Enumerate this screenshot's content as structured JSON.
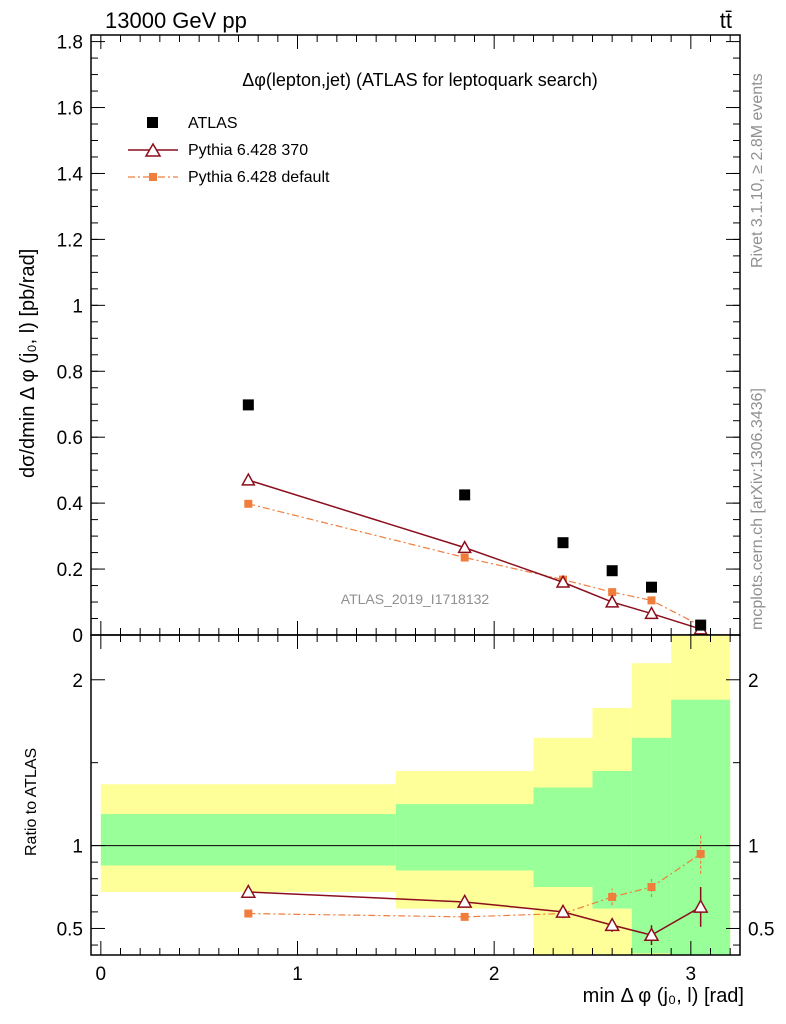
{
  "header": {
    "energy_label": "13000 GeV pp",
    "process_label": "tt̄"
  },
  "side": {
    "rivet_label": "Rivet 3.1.10, ≥ 2.8M events",
    "mcplots_label": "mcplots.cern.ch [arXiv:1306.3436]"
  },
  "colors": {
    "data": "#000000",
    "pythia370": "#8b0e1d",
    "pythia_default": "#f07d3c",
    "band_yellow": "#ffff99",
    "band_green": "#99ff99"
  },
  "chart_data": [
    {
      "type": "scatter",
      "title": "Δφ(lepton,jet) (ATLAS for leptoquark search)",
      "analysis_label": "ATLAS_2019_I1718132",
      "ylabel": "dσ/dmin Δ φ (j₀, l) [pb/rad]",
      "xlim": [
        -0.05,
        3.25
      ],
      "ylim": [
        0,
        1.82
      ],
      "yticks": [
        "0",
        "0.2",
        "0.4",
        "0.6",
        "0.8",
        "1",
        "1.2",
        "1.4",
        "1.6",
        "1.8"
      ],
      "legend_position": "top-left",
      "series": [
        {
          "name": "ATLAS",
          "x": [
            0.75,
            1.85,
            2.35,
            2.6,
            2.8,
            3.05
          ],
          "y": [
            0.698,
            0.425,
            0.28,
            0.195,
            0.145,
            0.03
          ]
        },
        {
          "name": "Pythia 6.428 370",
          "x": [
            0.75,
            1.85,
            2.35,
            2.6,
            2.8,
            3.05
          ],
          "y": [
            0.47,
            0.265,
            0.16,
            0.1,
            0.065,
            0.018
          ]
        },
        {
          "name": "Pythia 6.428 default",
          "x": [
            0.75,
            1.85,
            2.35,
            2.6,
            2.8,
            3.05
          ],
          "y": [
            0.398,
            0.235,
            0.168,
            0.13,
            0.105,
            0.028
          ]
        }
      ]
    },
    {
      "type": "line",
      "ylabel": "Ratio to ATLAS",
      "xlabel": "min Δ φ (j₀, l) [rad]",
      "xlim": [
        -0.05,
        3.25
      ],
      "ylim": [
        0.34,
        2.27
      ],
      "yticks": [
        "0.5",
        "1",
        "2"
      ],
      "xticks": [
        "0",
        "1",
        "2",
        "3"
      ],
      "bins": [
        0,
        1.5,
        2.2,
        2.5,
        2.7,
        2.9,
        3.2
      ],
      "band_green": [
        [
          0.88,
          1.19
        ],
        [
          0.85,
          1.25
        ],
        [
          0.75,
          1.35
        ],
        [
          0.62,
          1.45
        ],
        [
          0.35,
          1.65
        ],
        [
          0.34,
          1.88
        ]
      ],
      "band_yellow": [
        [
          0.72,
          1.37
        ],
        [
          0.62,
          1.45
        ],
        [
          0.34,
          1.65
        ],
        [
          0.34,
          1.83
        ],
        [
          0.34,
          2.1
        ],
        [
          0.34,
          2.27
        ]
      ],
      "series": [
        {
          "name": "Pythia 6.428 370",
          "x": [
            0.75,
            1.85,
            2.35,
            2.6,
            2.8,
            3.05
          ],
          "y": [
            0.72,
            0.66,
            0.6,
            0.52,
            0.46,
            0.63
          ],
          "err": [
            0,
            0,
            0.02,
            0.04,
            0.06,
            0.12
          ]
        },
        {
          "name": "Pythia 6.428 default",
          "x": [
            0.75,
            1.85,
            2.35,
            2.6,
            2.8,
            3.05
          ],
          "y": [
            0.59,
            0.57,
            0.59,
            0.69,
            0.75,
            0.95
          ],
          "err": [
            0,
            0.01,
            0.03,
            0.05,
            0.06,
            0.12
          ]
        }
      ]
    }
  ]
}
